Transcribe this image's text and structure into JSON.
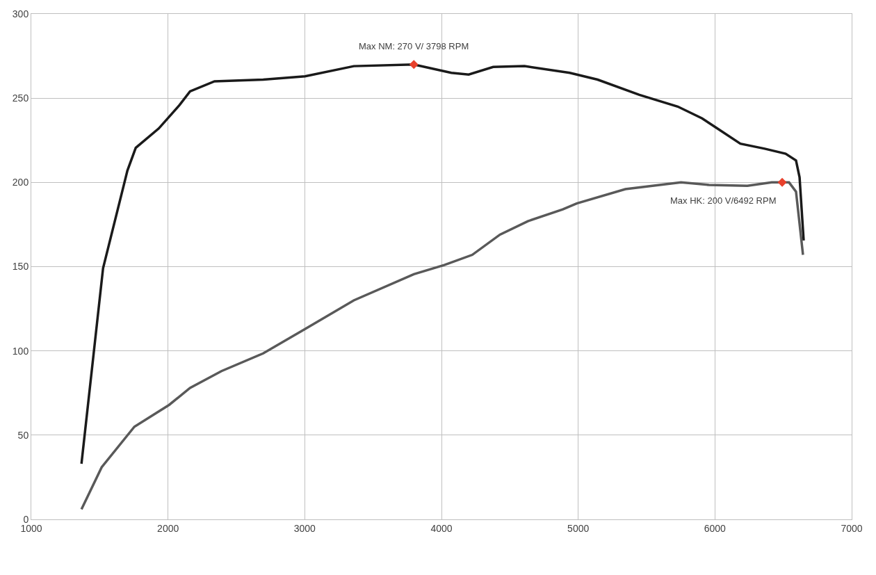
{
  "chart_data": {
    "type": "line",
    "xlim": [
      1000,
      7000
    ],
    "xticks": [
      1000,
      2000,
      3000,
      4000,
      5000,
      6000,
      7000
    ],
    "ylim": [
      0,
      300
    ],
    "yticks": [
      0,
      50,
      100,
      150,
      200,
      250,
      300
    ],
    "grid": true,
    "marker": "none",
    "line_style": "solid",
    "series": [
      {
        "color": "#1a1a1a",
        "x": [
          1367,
          1525,
          1703,
          1764,
          1932,
          2085,
          2161,
          2340,
          2696,
          3002,
          3359,
          3798,
          4072,
          4199,
          4378,
          4607,
          4938,
          5142,
          5447,
          5728,
          5906,
          6008,
          6186,
          6364,
          6517,
          6593,
          6619,
          6649
        ],
        "values": [
          33,
          149,
          207,
          220.5,
          232,
          246,
          254,
          260,
          261,
          263,
          269,
          270,
          265,
          264,
          268.5,
          269,
          265,
          261,
          252,
          245,
          238,
          232.5,
          223,
          220,
          217,
          213,
          203,
          165.5
        ]
      },
      {
        "color": "#595959",
        "x": [
          1367,
          1515,
          1754,
          2009,
          2161,
          2391,
          2696,
          3002,
          3359,
          3798,
          4021,
          4225,
          4428,
          4632,
          4887,
          4989,
          5345,
          5752,
          5957,
          6237,
          6415,
          6492,
          6542,
          6593,
          6644
        ],
        "values": [
          6,
          31,
          55,
          68,
          78,
          88,
          98.5,
          113,
          130,
          145.5,
          151,
          157,
          169,
          177,
          184,
          187.5,
          196,
          200,
          198.5,
          198,
          200,
          200,
          200,
          194.5,
          157
        ]
      },
      {
        "type": "scatter",
        "marker": "diamond",
        "color": "#e8412c",
        "x": [
          3798,
          6492
        ],
        "values": [
          270,
          200
        ]
      }
    ],
    "annotations": [
      {
        "text": "Max NM: 270 V/ 3798 RPM",
        "x": 3798,
        "y": 270
      },
      {
        "text": "Max HK: 200 V/6492 RPM",
        "x": 6492,
        "y": 200
      }
    ]
  }
}
